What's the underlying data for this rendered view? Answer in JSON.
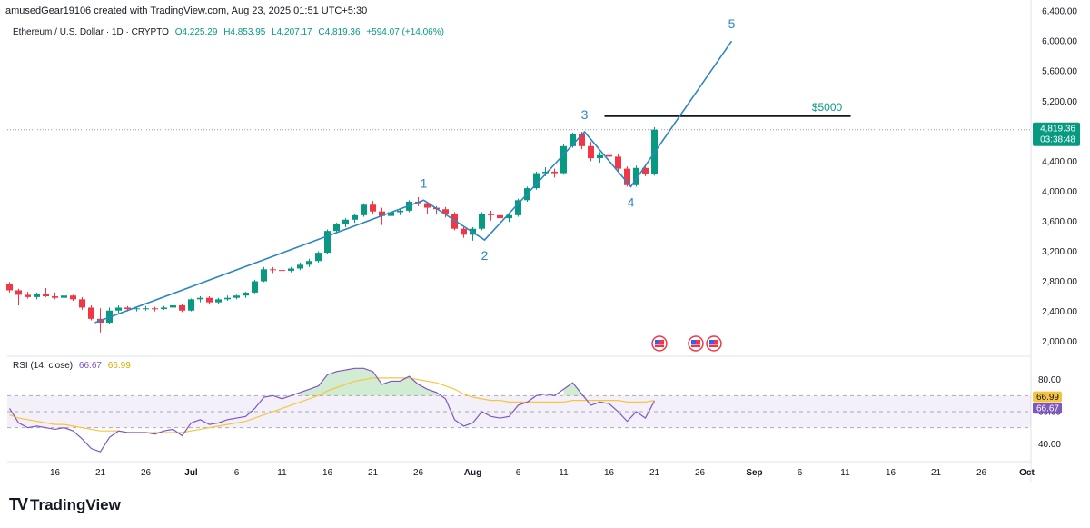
{
  "header": {
    "created_by": "amusedGear19106 created with TradingView.com, Aug 23, 2025 01:51 UTC+5:30",
    "symbol": "Ethereum / U.S. Dollar · 1D · CRYPTO",
    "open": "O4,225.29",
    "high": "H4,853.95",
    "low": "L4,207.17",
    "close": "C4,819.36",
    "change": "+594.07 (+14.06%)"
  },
  "rsi_legend": {
    "label": "RSI (14, close)",
    "rsi_value": "66.67",
    "ma_value": "66.99"
  },
  "brand": {
    "name": "TradingView",
    "logo": "TV"
  },
  "price_badge": {
    "price": "4,819.36",
    "countdown": "03:38:48"
  },
  "annotations": {
    "target_label": "$5000",
    "waves": [
      {
        "label": "1",
        "x": 29.0,
        "y": 3880
      },
      {
        "label": "2",
        "x": 34.0,
        "y": 3350
      },
      {
        "label": "3",
        "x": 43.0,
        "y": 4790
      },
      {
        "label": "4",
        "x": 47.5,
        "y": 4060
      },
      {
        "label": "5",
        "x": 54.0,
        "y": 6000
      }
    ]
  },
  "colors": {
    "up": "#089981",
    "down": "#f23645",
    "wave": "#2e86c1",
    "rsi": "#7e57c2",
    "rsi_ma": "#f5c542"
  },
  "chart_data": [
    {
      "type": "candlestick",
      "title": "Ethereum / U.S. Dollar · 1D · CRYPTO",
      "x_unit": "days from Jun 11, 2025",
      "x_ticks": [
        {
          "x": 5,
          "label": "16"
        },
        {
          "x": 10,
          "label": "21"
        },
        {
          "x": 15,
          "label": "26"
        },
        {
          "x": 20,
          "label": "Jul"
        },
        {
          "x": 25,
          "label": "6"
        },
        {
          "x": 30,
          "label": "11"
        },
        {
          "x": 35,
          "label": "16"
        },
        {
          "x": 40,
          "label": "21"
        },
        {
          "x": 45,
          "label": "26"
        },
        {
          "x": 51,
          "label": "Aug"
        },
        {
          "x": 56,
          "label": "6"
        },
        {
          "x": 61,
          "label": "11"
        },
        {
          "x": 66,
          "label": "16"
        },
        {
          "x": 71,
          "label": "21"
        },
        {
          "x": 76,
          "label": "26"
        },
        {
          "x": 82,
          "label": "Sep"
        },
        {
          "x": 87,
          "label": "6"
        },
        {
          "x": 92,
          "label": "11"
        },
        {
          "x": 97,
          "label": "16"
        },
        {
          "x": 102,
          "label": "21"
        },
        {
          "x": 107,
          "label": "26"
        },
        {
          "x": 112,
          "label": "Oct"
        }
      ],
      "y_ticks": [
        "6,400.00",
        "6,000.00",
        "5,600.00",
        "5,200.00",
        "4,400.00",
        "4,000.00",
        "3,600.00",
        "3,200.00",
        "2,800.00",
        "2,400.00",
        "2,000.00"
      ],
      "y_tick_values": [
        6400,
        6000,
        5600,
        5200,
        4400,
        4000,
        3600,
        3200,
        2800,
        2400,
        2000
      ],
      "ylim": [
        1850,
        6450
      ],
      "candles": [
        [
          2760,
          2790,
          2650,
          2680
        ],
        [
          2680,
          2700,
          2480,
          2620
        ],
        [
          2620,
          2660,
          2570,
          2590
        ],
        [
          2590,
          2650,
          2560,
          2630
        ],
        [
          2630,
          2710,
          2590,
          2600
        ],
        [
          2600,
          2650,
          2560,
          2580
        ],
        [
          2580,
          2640,
          2550,
          2610
        ],
        [
          2610,
          2620,
          2540,
          2560
        ],
        [
          2560,
          2590,
          2420,
          2450
        ],
        [
          2450,
          2480,
          2280,
          2300
        ],
        [
          2300,
          2440,
          2120,
          2250
        ],
        [
          2250,
          2450,
          2230,
          2410
        ],
        [
          2410,
          2480,
          2380,
          2450
        ],
        [
          2450,
          2470,
          2400,
          2430
        ],
        [
          2430,
          2460,
          2400,
          2440
        ],
        [
          2440,
          2470,
          2410,
          2440
        ],
        [
          2440,
          2460,
          2400,
          2430
        ],
        [
          2430,
          2470,
          2420,
          2450
        ],
        [
          2450,
          2500,
          2420,
          2480
        ],
        [
          2480,
          2500,
          2390,
          2410
        ],
        [
          2410,
          2570,
          2400,
          2560
        ],
        [
          2560,
          2600,
          2520,
          2580
        ],
        [
          2580,
          2600,
          2490,
          2520
        ],
        [
          2520,
          2580,
          2500,
          2560
        ],
        [
          2560,
          2610,
          2540,
          2580
        ],
        [
          2580,
          2620,
          2560,
          2610
        ],
        [
          2610,
          2660,
          2580,
          2650
        ],
        [
          2650,
          2820,
          2640,
          2800
        ],
        [
          2800,
          2990,
          2790,
          2960
        ],
        [
          2960,
          2990,
          2910,
          2950
        ],
        [
          2950,
          2980,
          2920,
          2940
        ],
        [
          2940,
          2990,
          2920,
          2970
        ],
        [
          2970,
          3050,
          2950,
          3020
        ],
        [
          3020,
          3100,
          2990,
          3070
        ],
        [
          3070,
          3200,
          3050,
          3180
        ],
        [
          3180,
          3490,
          3170,
          3470
        ],
        [
          3470,
          3580,
          3450,
          3560
        ],
        [
          3560,
          3640,
          3520,
          3620
        ],
        [
          3620,
          3700,
          3580,
          3680
        ],
        [
          3680,
          3840,
          3660,
          3820
        ],
        [
          3820,
          3870,
          3690,
          3730
        ],
        [
          3730,
          3780,
          3550,
          3670
        ],
        [
          3670,
          3750,
          3640,
          3720
        ],
        [
          3720,
          3760,
          3680,
          3740
        ],
        [
          3740,
          3880,
          3720,
          3860
        ],
        [
          3860,
          3920,
          3800,
          3840
        ],
        [
          3840,
          3860,
          3700,
          3780
        ],
        [
          3780,
          3800,
          3690,
          3760
        ],
        [
          3760,
          3790,
          3650,
          3690
        ],
        [
          3690,
          3720,
          3480,
          3500
        ],
        [
          3500,
          3520,
          3380,
          3420
        ],
        [
          3420,
          3520,
          3340,
          3500
        ],
        [
          3500,
          3720,
          3480,
          3700
        ],
        [
          3700,
          3740,
          3610,
          3680
        ],
        [
          3680,
          3720,
          3600,
          3640
        ],
        [
          3640,
          3700,
          3590,
          3680
        ],
        [
          3680,
          3900,
          3660,
          3880
        ],
        [
          3880,
          4060,
          3860,
          4040
        ],
        [
          4040,
          4260,
          4020,
          4240
        ],
        [
          4240,
          4320,
          4200,
          4260
        ],
        [
          4260,
          4300,
          4180,
          4240
        ],
        [
          4240,
          4620,
          4220,
          4600
        ],
        [
          4600,
          4780,
          4580,
          4760
        ],
        [
          4760,
          4790,
          4560,
          4600
        ],
        [
          4600,
          4660,
          4400,
          4440
        ],
        [
          4440,
          4520,
          4380,
          4480
        ],
        [
          4480,
          4520,
          4400,
          4460
        ],
        [
          4460,
          4500,
          4260,
          4300
        ],
        [
          4300,
          4330,
          4060,
          4080
        ],
        [
          4080,
          4340,
          4060,
          4310
        ],
        [
          4310,
          4330,
          4200,
          4225
        ],
        [
          4225.29,
          4853.95,
          4207.17,
          4819.36
        ]
      ]
    },
    {
      "type": "line",
      "title": "RSI (14, close)",
      "ylim": [
        30,
        90
      ],
      "y_ticks": [
        "80.00",
        "60.00",
        "40.00"
      ],
      "y_tick_values": [
        80,
        60,
        40
      ],
      "band": [
        50,
        70
      ],
      "badges": [
        {
          "label": "66.99",
          "value": 66.99,
          "color": "#f5c542"
        },
        {
          "label": "66.67",
          "value": 66.67,
          "color": "#7e57c2"
        }
      ],
      "series": [
        {
          "key": "rsi",
          "values": [
            62,
            53,
            50,
            51,
            50,
            49,
            50,
            48,
            43,
            37,
            35,
            44,
            48,
            47,
            47,
            47,
            46,
            48,
            49,
            45,
            53,
            55,
            52,
            53,
            55,
            56,
            57,
            62,
            69,
            70,
            68,
            70,
            72,
            74,
            76,
            83,
            85,
            86,
            87,
            87,
            85,
            77,
            79,
            79,
            82,
            77,
            74,
            72,
            68,
            55,
            51,
            53,
            60,
            57,
            56,
            57,
            64,
            66,
            70,
            71,
            70,
            74,
            78,
            71,
            64,
            66,
            65,
            60,
            54,
            60,
            56,
            66.67
          ]
        },
        {
          "key": "rsi_ma",
          "values": [
            58,
            56,
            55,
            54,
            53,
            52,
            52,
            51,
            50,
            49,
            48,
            48,
            48,
            47,
            47,
            47,
            47,
            47,
            47,
            47,
            48,
            49,
            50,
            51,
            52,
            53,
            54,
            56,
            58,
            60,
            62,
            64,
            66,
            68,
            70,
            73,
            75,
            77,
            79,
            80,
            81,
            81,
            81,
            81,
            81,
            80,
            79,
            78,
            76,
            74,
            71,
            69,
            68,
            67,
            67,
            66,
            66,
            66,
            66,
            66,
            66,
            66,
            67,
            67,
            67,
            67,
            67,
            67,
            66,
            66,
            66,
            66.99
          ]
        }
      ]
    }
  ]
}
